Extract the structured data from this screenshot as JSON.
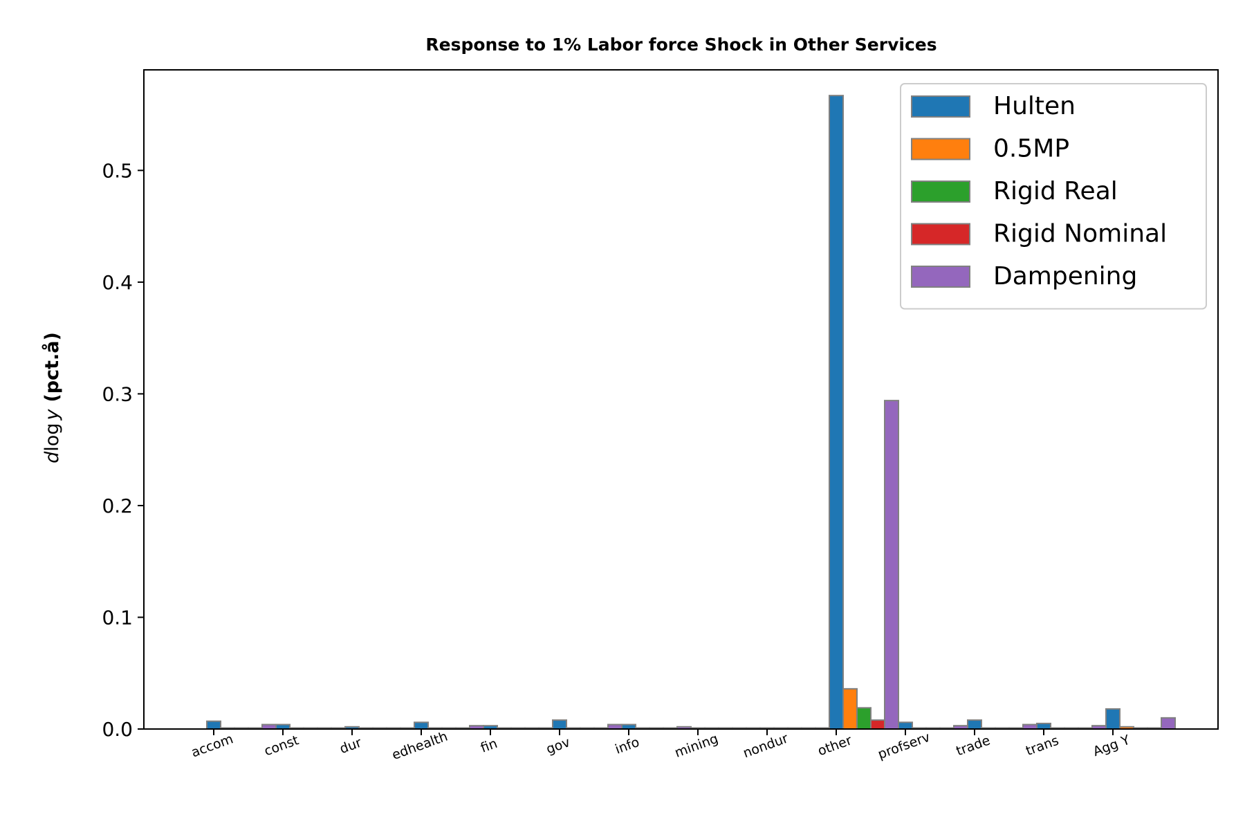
{
  "chart_data": {
    "type": "bar",
    "title": "Response to 1% Labor force Shock in Other Services",
    "ylabel_italic": "d",
    "ylabel_log": "log",
    "ylabel_var": "y",
    "ylabel_bold": "(pct.å)",
    "xlabel": "",
    "ylim": [
      0,
      0.59
    ],
    "yticks": [
      0.0,
      0.1,
      0.2,
      0.3,
      0.4,
      0.5
    ],
    "ytick_labels": [
      "0.0",
      "0.1",
      "0.2",
      "0.3",
      "0.4",
      "0.5"
    ],
    "categories": [
      "accom",
      "const",
      "dur",
      "edhealth",
      "fin",
      "gov",
      "info",
      "mining",
      "nondur",
      "other",
      "profserv",
      "trade",
      "trans",
      "Agg Y"
    ],
    "grid": false,
    "legend_position": "top-right",
    "series": [
      {
        "name": "Hulten",
        "color": "#1f77b4",
        "values": [
          0.007,
          0.004,
          0.002,
          0.006,
          0.003,
          0.008,
          0.004,
          0.001,
          0.001,
          0.567,
          0.006,
          0.008,
          0.005,
          0.018
        ]
      },
      {
        "name": "0.5MP",
        "color": "#ff7f0e",
        "values": [
          0.001,
          0.001,
          0.001,
          0.001,
          0.001,
          0.001,
          0.001,
          0.001,
          0.001,
          0.036,
          0.001,
          0.001,
          0.001,
          0.002
        ]
      },
      {
        "name": "Rigid Real",
        "color": "#2ca02c",
        "values": [
          0.001,
          0.001,
          0.001,
          0.001,
          0.001,
          0.001,
          0.001,
          0.001,
          0.001,
          0.019,
          0.001,
          0.001,
          0.001,
          0.001
        ]
      },
      {
        "name": "Rigid Nominal",
        "color": "#d62728",
        "values": [
          0.001,
          0.001,
          0.001,
          0.001,
          0.001,
          0.001,
          0.001,
          0.001,
          0.001,
          0.008,
          0.001,
          0.001,
          0.001,
          0.001
        ]
      },
      {
        "name": "Dampening",
        "color": "#9467bd",
        "values": [
          0.004,
          0.001,
          0.001,
          0.003,
          0.001,
          0.004,
          0.002,
          0.001,
          0.001,
          0.294,
          0.003,
          0.004,
          0.003,
          0.01
        ]
      }
    ]
  }
}
